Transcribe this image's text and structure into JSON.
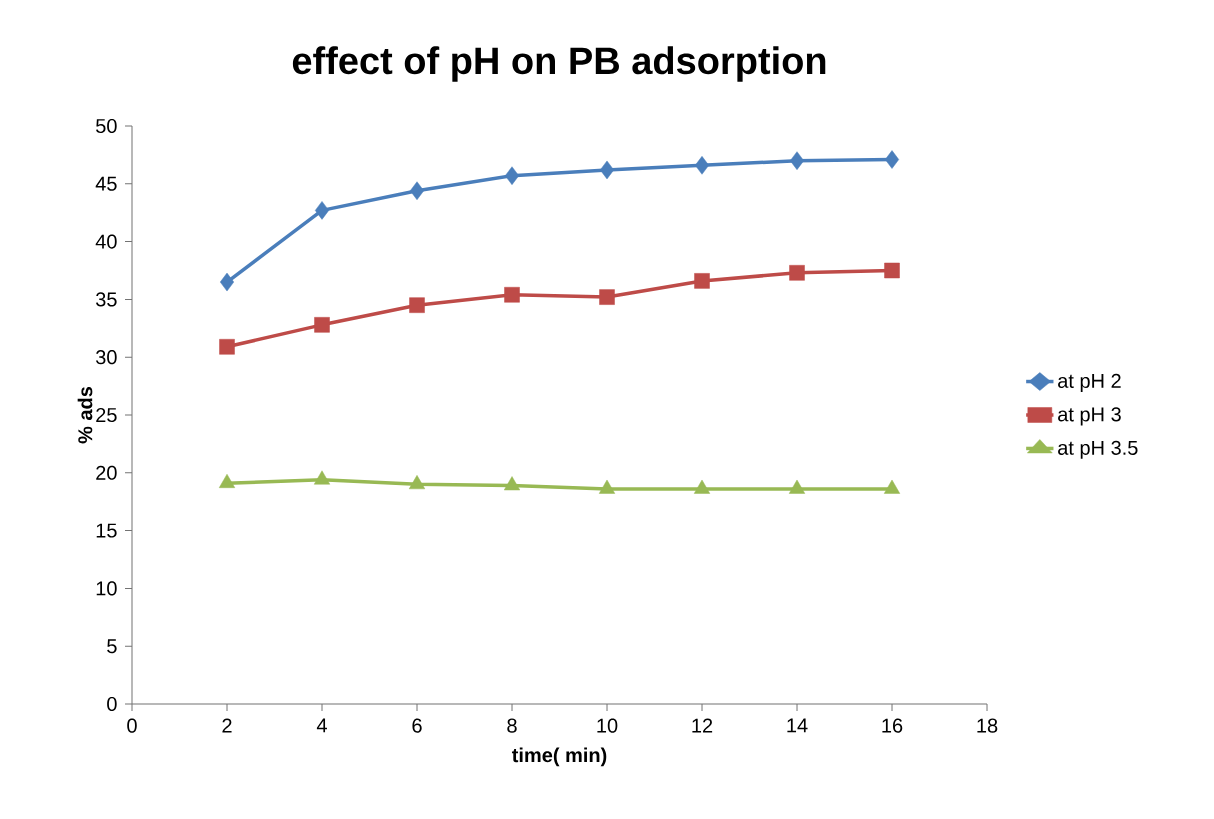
{
  "chart_data": {
    "type": "line",
    "title": "effect of pH on PB adsorption",
    "xlabel": "time( min)",
    "ylabel": "% ads",
    "xlim": [
      0,
      18
    ],
    "xticks": [
      0,
      2,
      4,
      6,
      8,
      10,
      12,
      14,
      16,
      18
    ],
    "ylim": [
      0,
      50
    ],
    "yticks": [
      0,
      5,
      10,
      15,
      20,
      25,
      30,
      35,
      40,
      45,
      50
    ],
    "x": [
      2,
      4,
      6,
      8,
      10,
      12,
      14,
      16
    ],
    "legend": "right",
    "series": [
      {
        "name": "at pH 2",
        "color": "#4a7ebb",
        "marker": "diamond",
        "values": [
          36.5,
          42.7,
          44.4,
          45.7,
          46.2,
          46.6,
          47.0,
          47.1
        ]
      },
      {
        "name": "at pH 3",
        "color": "#be4b48",
        "marker": "square",
        "values": [
          30.9,
          32.8,
          34.5,
          35.4,
          35.2,
          36.6,
          37.3,
          37.5
        ]
      },
      {
        "name": "at pH 3.5",
        "color": "#98b954",
        "marker": "triangle",
        "values": [
          19.1,
          19.4,
          19.0,
          18.9,
          18.6,
          18.6,
          18.6,
          18.6
        ]
      }
    ]
  }
}
